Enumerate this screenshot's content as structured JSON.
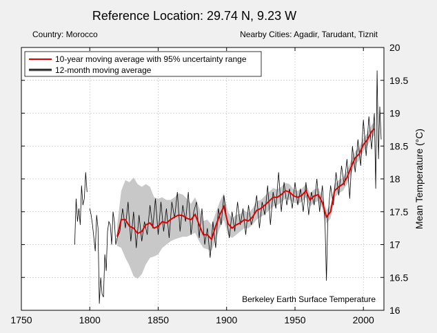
{
  "chart_data": {
    "type": "line",
    "title": "Reference Location: 29.74 N, 9.23 W",
    "subtitle_left": "Country: Morocco",
    "subtitle_right": "Nearby Cities: Agadir, Tarudant, Tiznit",
    "ylabel": "Mean Temperature (°C)",
    "xlabel": "",
    "xlim": [
      1750,
      2015
    ],
    "ylim": [
      16,
      20
    ],
    "xticks": [
      1750,
      1800,
      1850,
      1900,
      1950,
      2000
    ],
    "yticks": [
      16,
      16.5,
      17,
      17.5,
      18,
      18.5,
      19,
      19.5,
      20
    ],
    "grid": true,
    "legend_placement": "top-left",
    "annotation": "Berkeley Earth Surface Temperature",
    "colors": {
      "moving_avg_10yr": "#dd0000",
      "moving_avg_12mo": "#000000",
      "uncertainty": "#c8c8c8"
    },
    "series": [
      {
        "name": "10-year moving average with 95% uncertainty range",
        "x": [
          1820,
          1823,
          1826,
          1829,
          1832,
          1835,
          1838,
          1841,
          1844,
          1847,
          1850,
          1853,
          1856,
          1859,
          1862,
          1865,
          1868,
          1871,
          1874,
          1877,
          1880,
          1883,
          1886,
          1889,
          1892,
          1895,
          1898,
          1901,
          1904,
          1907,
          1910,
          1913,
          1916,
          1919,
          1922,
          1925,
          1928,
          1931,
          1934,
          1937,
          1940,
          1943,
          1946,
          1949,
          1952,
          1955,
          1958,
          1961,
          1964,
          1967,
          1970,
          1973,
          1976,
          1979,
          1982,
          1985,
          1988,
          1991,
          1994,
          1997,
          2000,
          2003,
          2006,
          2008
        ],
        "y": [
          17.12,
          17.38,
          17.38,
          17.28,
          17.25,
          17.17,
          17.2,
          17.3,
          17.33,
          17.25,
          17.28,
          17.35,
          17.33,
          17.38,
          17.42,
          17.45,
          17.44,
          17.4,
          17.38,
          17.46,
          17.3,
          17.15,
          17.15,
          17.08,
          17.28,
          17.45,
          17.58,
          17.32,
          17.25,
          17.3,
          17.33,
          17.38,
          17.36,
          17.42,
          17.52,
          17.55,
          17.6,
          17.66,
          17.72,
          17.72,
          17.76,
          17.82,
          17.8,
          17.74,
          17.72,
          17.75,
          17.82,
          17.68,
          17.74,
          17.76,
          17.64,
          17.42,
          17.5,
          17.82,
          17.88,
          17.92,
          18.02,
          18.18,
          18.32,
          18.38,
          18.52,
          18.6,
          18.72,
          18.76
        ],
        "lower": [
          16.98,
          16.95,
          16.8,
          16.68,
          16.52,
          16.48,
          16.55,
          16.7,
          16.8,
          16.82,
          16.85,
          16.95,
          17.0,
          17.05,
          17.08,
          17.1,
          17.12,
          17.12,
          17.15,
          17.18,
          17.05,
          16.95,
          16.93,
          16.9,
          17.08,
          17.25,
          17.38,
          17.15,
          17.1,
          17.15,
          17.2,
          17.25,
          17.25,
          17.3,
          17.38,
          17.42,
          17.46,
          17.52,
          17.58,
          17.6,
          17.64,
          17.7,
          17.68,
          17.64,
          17.62,
          17.65,
          17.72,
          17.58,
          17.64,
          17.66,
          17.55,
          17.32,
          17.4,
          17.72,
          17.78,
          17.82,
          17.92,
          18.08,
          18.22,
          18.28,
          18.42,
          18.5,
          18.62,
          18.66
        ],
        "upper": [
          17.28,
          17.82,
          17.98,
          17.95,
          18.02,
          17.92,
          17.88,
          17.92,
          17.88,
          17.72,
          17.7,
          17.72,
          17.68,
          17.68,
          17.72,
          17.78,
          17.76,
          17.7,
          17.62,
          17.72,
          17.56,
          17.36,
          17.38,
          17.3,
          17.48,
          17.65,
          17.78,
          17.5,
          17.4,
          17.45,
          17.47,
          17.52,
          17.48,
          17.55,
          17.66,
          17.68,
          17.74,
          17.8,
          17.86,
          17.84,
          17.88,
          17.94,
          17.92,
          17.84,
          17.82,
          17.85,
          17.92,
          17.78,
          17.84,
          17.86,
          17.73,
          17.52,
          17.6,
          17.92,
          17.98,
          18.02,
          18.12,
          18.28,
          18.42,
          18.48,
          18.62,
          18.7,
          18.82,
          18.86
        ]
      },
      {
        "name": "12-month moving average",
        "x": [
          1789,
          1790,
          1791,
          1792,
          1793,
          1794,
          1795,
          1796,
          1797,
          1798,
          1799,
          1800,
          1801,
          1802,
          1803,
          1804,
          1805,
          1806,
          1807,
          1808,
          1809,
          1810,
          1811,
          1812,
          1813,
          1814,
          1815,
          1816,
          1817,
          1818,
          1819,
          1820,
          1822,
          1824,
          1826,
          1828,
          1830,
          1832,
          1834,
          1836,
          1838,
          1840,
          1842,
          1844,
          1846,
          1848,
          1850,
          1852,
          1854,
          1856,
          1858,
          1860,
          1862,
          1864,
          1866,
          1868,
          1870,
          1872,
          1874,
          1876,
          1878,
          1880,
          1882,
          1884,
          1886,
          1888,
          1890,
          1892,
          1894,
          1896,
          1898,
          1900,
          1902,
          1904,
          1906,
          1908,
          1910,
          1912,
          1914,
          1916,
          1918,
          1920,
          1922,
          1924,
          1926,
          1928,
          1930,
          1932,
          1934,
          1936,
          1938,
          1940,
          1942,
          1944,
          1946,
          1948,
          1950,
          1952,
          1954,
          1956,
          1958,
          1960,
          1962,
          1964,
          1966,
          1968,
          1970,
          1972,
          1973,
          1974,
          1976,
          1978,
          1980,
          1982,
          1984,
          1986,
          1988,
          1990,
          1992,
          1994,
          1996,
          1998,
          2000,
          2002,
          2004,
          2006,
          2008,
          2009,
          2010,
          2011,
          2012,
          2013
        ],
        "y": [
          17.0,
          17.7,
          17.35,
          17.55,
          17.3,
          17.9,
          17.6,
          17.7,
          18.1,
          17.8,
          null,
          17.55,
          17.45,
          17.3,
          17.1,
          16.9,
          17.45,
          17.25,
          16.1,
          16.5,
          16.25,
          16.2,
          16.85,
          16.6,
          17.2,
          17.35,
          17.3,
          17.0,
          17.5,
          17.35,
          17.0,
          17.1,
          17.2,
          17.55,
          17.25,
          17.65,
          17.05,
          17.5,
          16.95,
          17.45,
          17.05,
          17.35,
          17.15,
          17.6,
          17.25,
          17.7,
          17.15,
          17.65,
          17.2,
          17.55,
          17.1,
          17.65,
          17.4,
          17.8,
          17.2,
          17.6,
          17.35,
          17.8,
          17.15,
          17.5,
          17.65,
          17.1,
          17.55,
          17.0,
          17.25,
          16.8,
          17.35,
          16.95,
          17.55,
          17.3,
          17.75,
          17.4,
          17.1,
          17.5,
          17.2,
          17.65,
          17.3,
          17.55,
          17.15,
          17.6,
          17.3,
          17.45,
          17.75,
          17.25,
          17.65,
          17.45,
          17.9,
          17.3,
          17.8,
          17.55,
          18.1,
          17.5,
          17.95,
          17.6,
          17.85,
          17.55,
          17.95,
          17.6,
          17.85,
          17.5,
          17.95,
          17.45,
          17.8,
          17.6,
          18.0,
          17.5,
          17.9,
          17.3,
          16.45,
          17.4,
          17.9,
          17.6,
          18.1,
          17.75,
          18.2,
          17.9,
          18.3,
          17.7,
          18.5,
          18.1,
          18.6,
          18.2,
          18.9,
          18.35,
          18.95,
          18.45,
          19.0,
          17.85,
          19.65,
          18.3,
          19.1,
          18.6
        ]
      }
    ]
  }
}
